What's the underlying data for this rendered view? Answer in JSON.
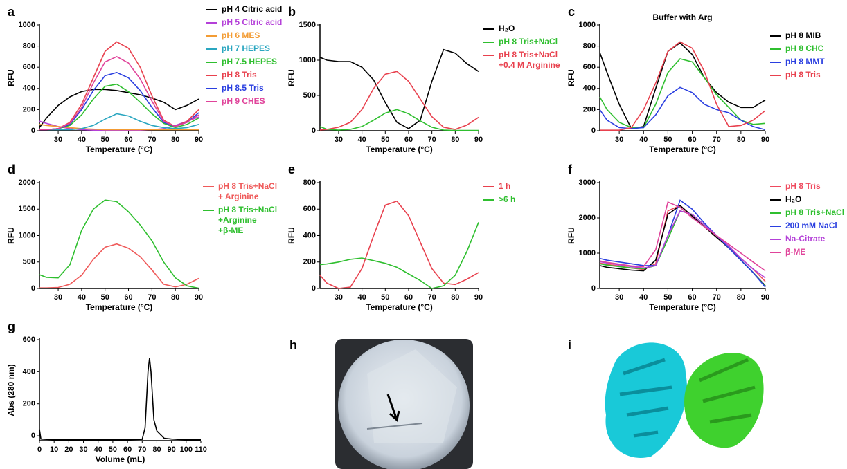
{
  "chart_data": [
    {
      "type": "line",
      "panel": "a",
      "x_label": "Temperature (°C)",
      "y_label": "RFU",
      "x": [
        22,
        25,
        30,
        35,
        40,
        45,
        50,
        55,
        60,
        65,
        70,
        75,
        80,
        85,
        90
      ],
      "xlim": [
        22,
        90
      ],
      "xticks": [
        30,
        40,
        50,
        60,
        70,
        80,
        90
      ],
      "ylim": [
        0,
        1000
      ],
      "yticks": [
        0,
        200,
        400,
        600,
        800,
        1000
      ],
      "series": [
        {
          "name": "pH 4 Citric acid",
          "color": "#000000",
          "values": [
            30,
            120,
            240,
            320,
            370,
            390,
            390,
            380,
            360,
            340,
            310,
            270,
            200,
            240,
            300
          ]
        },
        {
          "name": "pH 5 Citric acid",
          "color": "#b440d8",
          "values": [
            90,
            70,
            40,
            20,
            10,
            5,
            5,
            5,
            5,
            5,
            10,
            20,
            50,
            90,
            130
          ]
        },
        {
          "name": "pH 6 MES",
          "color": "#f39c34",
          "values": [
            60,
            50,
            40,
            30,
            20,
            15,
            10,
            10,
            10,
            10,
            10,
            10,
            10,
            10,
            10
          ]
        },
        {
          "name": "pH 7 HEPES",
          "color": "#2aa6c0",
          "values": [
            10,
            10,
            10,
            10,
            20,
            50,
            110,
            160,
            140,
            90,
            50,
            30,
            20,
            30,
            60
          ]
        },
        {
          "name": "pH 7.5 HEPES",
          "color": "#2fbf2f",
          "values": [
            10,
            10,
            20,
            50,
            150,
            300,
            420,
            440,
            370,
            270,
            160,
            70,
            30,
            60,
            120
          ]
        },
        {
          "name": "pH 8 Tris",
          "color": "#e8414e",
          "values": [
            10,
            10,
            20,
            80,
            250,
            500,
            750,
            840,
            780,
            600,
            330,
            100,
            40,
            90,
            200
          ]
        },
        {
          "name": "pH 8.5 Tris",
          "color": "#2a3fe0",
          "values": [
            10,
            10,
            20,
            60,
            200,
            380,
            520,
            550,
            500,
            380,
            220,
            80,
            40,
            80,
            170
          ]
        },
        {
          "name": "pH 9 CHES",
          "color": "#e0439a",
          "values": [
            10,
            10,
            20,
            70,
            220,
            450,
            650,
            700,
            640,
            490,
            280,
            90,
            40,
            80,
            150
          ]
        }
      ]
    },
    {
      "type": "line",
      "panel": "b",
      "x_label": "Temperature (°C)",
      "y_label": "RFU",
      "x": [
        22,
        25,
        30,
        35,
        40,
        45,
        50,
        55,
        60,
        65,
        70,
        75,
        80,
        85,
        90
      ],
      "xlim": [
        22,
        90
      ],
      "xticks": [
        30,
        40,
        50,
        60,
        70,
        80,
        90
      ],
      "ylim": [
        0,
        1500
      ],
      "yticks": [
        0,
        500,
        1000,
        1500
      ],
      "series": [
        {
          "name": "H₂O",
          "color": "#000000",
          "values": [
            1040,
            1000,
            980,
            980,
            900,
            720,
            400,
            120,
            30,
            150,
            700,
            1150,
            1100,
            950,
            840
          ]
        },
        {
          "name": "pH 8 Tris+NaCl",
          "color": "#2fbf2f",
          "values": [
            60,
            20,
            10,
            20,
            60,
            150,
            250,
            300,
            240,
            140,
            50,
            10,
            5,
            5,
            5
          ]
        },
        {
          "name": "pH 8 Tris+NaCl\n+0.4 M Arginine",
          "color": "#e8414e",
          "values": [
            10,
            20,
            50,
            120,
            300,
            600,
            800,
            840,
            700,
            450,
            200,
            50,
            20,
            80,
            190
          ]
        }
      ]
    },
    {
      "type": "line",
      "panel": "c",
      "title": "Buffer with Arg",
      "x_label": "Temperature (°C)",
      "y_label": "RFU",
      "x": [
        22,
        25,
        30,
        35,
        40,
        45,
        50,
        55,
        60,
        65,
        70,
        75,
        80,
        85,
        90
      ],
      "xlim": [
        22,
        90
      ],
      "xticks": [
        30,
        40,
        50,
        60,
        70,
        80,
        90
      ],
      "ylim": [
        0,
        1000
      ],
      "yticks": [
        0,
        200,
        400,
        600,
        800,
        1000
      ],
      "series": [
        {
          "name": "pH 8 MIB",
          "color": "#000000",
          "values": [
            740,
            550,
            250,
            20,
            40,
            400,
            750,
            830,
            720,
            500,
            360,
            270,
            220,
            220,
            290
          ]
        },
        {
          "name": "pH 8 CHC",
          "color": "#2fbf2f",
          "values": [
            320,
            200,
            80,
            30,
            30,
            250,
            550,
            680,
            650,
            500,
            340,
            220,
            100,
            60,
            70
          ]
        },
        {
          "name": "pH 8 MMT",
          "color": "#2a3fe0",
          "values": [
            200,
            100,
            30,
            20,
            30,
            150,
            330,
            410,
            360,
            250,
            200,
            170,
            100,
            40,
            10
          ]
        },
        {
          "name": "pH 8 Tris",
          "color": "#e8414e",
          "values": [
            5,
            5,
            5,
            30,
            200,
            450,
            750,
            840,
            780,
            560,
            250,
            40,
            50,
            100,
            190
          ]
        }
      ]
    },
    {
      "type": "line",
      "panel": "d",
      "x_label": "Temperature (°C)",
      "y_label": "RFU",
      "x": [
        22,
        25,
        30,
        35,
        40,
        45,
        50,
        55,
        60,
        65,
        70,
        75,
        80,
        85,
        90
      ],
      "xlim": [
        22,
        90
      ],
      "xticks": [
        30,
        40,
        50,
        60,
        70,
        80,
        90
      ],
      "ylim": [
        0,
        2000
      ],
      "yticks": [
        0,
        500,
        1000,
        1500,
        2000
      ],
      "series": [
        {
          "name": "pH 8 Tris+NaCl\n+ Arginine",
          "color": "#ef5a5a",
          "values": [
            10,
            10,
            20,
            80,
            250,
            550,
            780,
            840,
            760,
            600,
            350,
            80,
            30,
            80,
            190
          ]
        },
        {
          "name": "pH 8 Tris+NaCl\n+Arginine\n+β-ME",
          "color": "#2fbf2f",
          "values": [
            260,
            210,
            200,
            450,
            1100,
            1500,
            1670,
            1640,
            1450,
            1200,
            900,
            500,
            200,
            50,
            5
          ]
        }
      ]
    },
    {
      "type": "line",
      "panel": "e",
      "x_label": "Temperature (°C)",
      "y_label": "RFU",
      "x": [
        22,
        25,
        30,
        35,
        40,
        45,
        50,
        55,
        60,
        65,
        70,
        75,
        80,
        85,
        90
      ],
      "xlim": [
        22,
        90
      ],
      "xticks": [
        30,
        40,
        50,
        60,
        70,
        80,
        90
      ],
      "ylim": [
        0,
        800
      ],
      "yticks": [
        0,
        200,
        400,
        600,
        800
      ],
      "series": [
        {
          "name": "1 h",
          "color": "#e8414e",
          "values": [
            100,
            40,
            0,
            10,
            150,
            400,
            630,
            660,
            550,
            350,
            150,
            40,
            30,
            70,
            120
          ]
        },
        {
          "name": ">6 h",
          "color": "#2fbf2f",
          "values": [
            180,
            185,
            200,
            220,
            230,
            210,
            190,
            160,
            110,
            60,
            0,
            20,
            100,
            280,
            500
          ]
        }
      ]
    },
    {
      "type": "line",
      "panel": "f",
      "x_label": "Temperature (°C)",
      "y_label": "RFU",
      "x": [
        22,
        25,
        30,
        35,
        40,
        45,
        50,
        55,
        60,
        65,
        70,
        75,
        80,
        85,
        90
      ],
      "xlim": [
        22,
        90
      ],
      "xticks": [
        30,
        40,
        50,
        60,
        70,
        80,
        90
      ],
      "ylim": [
        0,
        3000
      ],
      "yticks": [
        0,
        1000,
        2000,
        3000
      ],
      "series": [
        {
          "name": "pH 8 Tris",
          "color": "#ef4a5e",
          "values": [
            720,
            680,
            640,
            580,
            540,
            700,
            2200,
            2350,
            2050,
            1750,
            1450,
            1150,
            850,
            550,
            200
          ]
        },
        {
          "name": "H₂O",
          "color": "#000000",
          "values": [
            650,
            600,
            560,
            520,
            500,
            800,
            2100,
            2350,
            2050,
            1750,
            1450,
            1150,
            800,
            450,
            80
          ]
        },
        {
          "name": "pH 8 Tris+NaCl",
          "color": "#2fbf2f",
          "values": [
            700,
            660,
            620,
            580,
            560,
            650,
            1400,
            2200,
            2100,
            1800,
            1500,
            1150,
            800,
            450,
            60
          ]
        },
        {
          "name": "200 mM NaCl",
          "color": "#2a3fe0",
          "values": [
            850,
            800,
            750,
            700,
            650,
            650,
            1500,
            2500,
            2250,
            1850,
            1500,
            1150,
            800,
            450,
            40
          ]
        },
        {
          "name": "Na-Citrate",
          "color": "#b440d8",
          "values": [
            760,
            720,
            670,
            620,
            580,
            650,
            1500,
            2200,
            2100,
            1800,
            1500,
            1200,
            850,
            550,
            300
          ]
        },
        {
          "name": "β-ME",
          "color": "#e0439a",
          "values": [
            780,
            740,
            690,
            640,
            620,
            1100,
            2450,
            2300,
            2000,
            1750,
            1500,
            1250,
            1000,
            750,
            500
          ]
        }
      ]
    },
    {
      "type": "line",
      "panel": "g",
      "x_label": "Volume (mL)",
      "y_label": "Abs (280 nm)",
      "x": [
        0,
        1,
        10,
        20,
        30,
        40,
        50,
        60,
        70,
        72,
        74,
        75,
        76,
        78,
        80,
        85,
        90,
        100,
        110
      ],
      "xlim": [
        0,
        110
      ],
      "xticks": [
        0,
        10,
        20,
        30,
        40,
        50,
        60,
        70,
        80,
        90,
        100,
        110
      ],
      "ylim": [
        -30,
        600
      ],
      "yticks": [
        0,
        200,
        400,
        600
      ],
      "series": [
        {
          "name": "Abs (280 nm)",
          "color": "#000000",
          "values": [
            40,
            -20,
            -25,
            -25,
            -25,
            -25,
            -25,
            -25,
            -22,
            50,
            400,
            485,
            400,
            100,
            30,
            -15,
            -20,
            -25,
            -25
          ]
        }
      ]
    }
  ],
  "image_panels": [
    {
      "panel": "h"
    },
    {
      "panel": "i"
    }
  ]
}
